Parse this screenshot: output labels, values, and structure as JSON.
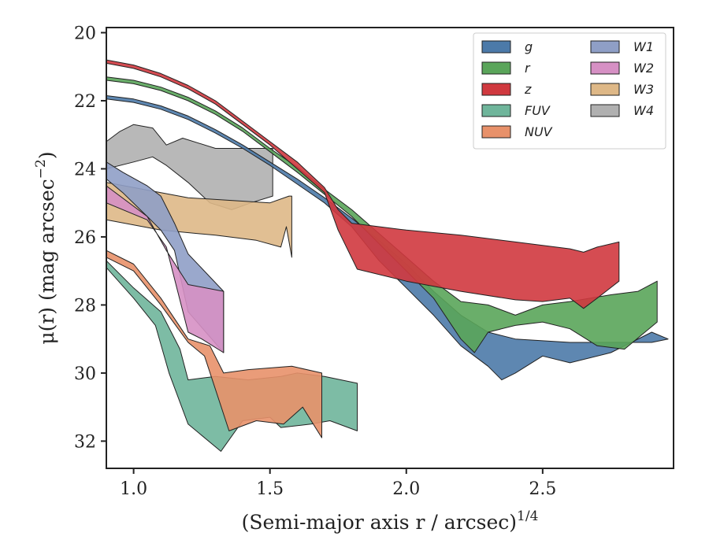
{
  "chart_data": {
    "type": "area",
    "title": "",
    "xlabel": "(Semi-major axis r / arcsec)",
    "xlabel_sup": "1/4",
    "ylabel": "μ(r) (mag arcsec",
    "ylabel_sup": "−2",
    "ylabel_close": ")",
    "xlim": [
      0.9,
      2.98
    ],
    "ylim": [
      32.8,
      19.85
    ],
    "y_inverted": true,
    "xticks": [
      1.0,
      1.5,
      2.0,
      2.5
    ],
    "xtick_labels": [
      "1.0",
      "1.5",
      "2.0",
      "2.5"
    ],
    "yticks": [
      20,
      22,
      24,
      26,
      28,
      30,
      32
    ],
    "ytick_labels": [
      "20",
      "22",
      "24",
      "26",
      "28",
      "30",
      "32"
    ],
    "grid": false,
    "legend_position": "top-right",
    "legend_columns": 2,
    "series": [
      {
        "name": "W4",
        "color": "#b0b0b0",
        "upper": [
          [
            0.9,
            23.2
          ],
          [
            0.95,
            22.9
          ],
          [
            1.0,
            22.7
          ],
          [
            1.07,
            22.8
          ],
          [
            1.12,
            23.3
          ],
          [
            1.18,
            23.1
          ],
          [
            1.3,
            23.4
          ],
          [
            1.51,
            23.4
          ]
        ],
        "lower": [
          [
            0.9,
            24.0
          ],
          [
            1.0,
            23.8
          ],
          [
            1.07,
            23.65
          ],
          [
            1.12,
            23.9
          ],
          [
            1.2,
            24.4
          ],
          [
            1.28,
            25.0
          ],
          [
            1.36,
            25.2
          ],
          [
            1.43,
            25.0
          ],
          [
            1.51,
            24.8
          ]
        ]
      },
      {
        "name": "W3",
        "color": "#deb887",
        "upper": [
          [
            0.9,
            24.4
          ],
          [
            1.2,
            24.85
          ],
          [
            1.5,
            25.0
          ],
          [
            1.57,
            24.8
          ],
          [
            1.58,
            24.8
          ]
        ],
        "lower": [
          [
            0.9,
            25.5
          ],
          [
            1.1,
            25.8
          ],
          [
            1.3,
            25.95
          ],
          [
            1.45,
            26.1
          ],
          [
            1.54,
            26.3
          ],
          [
            1.56,
            25.7
          ],
          [
            1.58,
            26.6
          ]
        ]
      },
      {
        "name": "W1",
        "color": "#8f9fc6",
        "upper": [
          [
            0.9,
            23.8
          ],
          [
            0.96,
            24.1
          ],
          [
            1.05,
            24.5
          ],
          [
            1.1,
            24.8
          ],
          [
            1.15,
            25.6
          ],
          [
            1.2,
            26.5
          ],
          [
            1.33,
            27.6
          ]
        ],
        "lower": [
          [
            0.9,
            24.3
          ],
          [
            0.96,
            24.7
          ],
          [
            1.05,
            25.4
          ],
          [
            1.1,
            25.8
          ],
          [
            1.15,
            26.4
          ],
          [
            1.2,
            28.2
          ],
          [
            1.33,
            29.4
          ]
        ]
      },
      {
        "name": "W2",
        "color": "#d690c4",
        "upper": [
          [
            0.9,
            24.5
          ],
          [
            1.05,
            25.4
          ],
          [
            1.12,
            26.4
          ],
          [
            1.2,
            27.4
          ],
          [
            1.33,
            27.6
          ]
        ],
        "lower": [
          [
            0.9,
            25.0
          ],
          [
            1.05,
            25.5
          ],
          [
            1.12,
            26.3
          ],
          [
            1.2,
            28.8
          ],
          [
            1.25,
            29.0
          ],
          [
            1.33,
            29.4
          ]
        ]
      },
      {
        "name": "FUV",
        "color": "#6fb59b",
        "upper": [
          [
            0.9,
            26.7
          ],
          [
            1.0,
            27.5
          ],
          [
            1.1,
            28.2
          ],
          [
            1.17,
            29.3
          ],
          [
            1.2,
            30.2
          ],
          [
            1.3,
            30.1
          ],
          [
            1.42,
            30.2
          ],
          [
            1.54,
            30.1
          ],
          [
            1.6,
            30.0
          ],
          [
            1.7,
            30.1
          ],
          [
            1.82,
            30.3
          ]
        ],
        "lower": [
          [
            0.9,
            26.9
          ],
          [
            1.0,
            27.8
          ],
          [
            1.08,
            28.6
          ],
          [
            1.13,
            30.0
          ],
          [
            1.2,
            31.5
          ],
          [
            1.32,
            32.3
          ],
          [
            1.4,
            31.4
          ],
          [
            1.5,
            31.3
          ],
          [
            1.54,
            31.6
          ],
          [
            1.65,
            31.5
          ],
          [
            1.72,
            31.4
          ],
          [
            1.82,
            31.7
          ]
        ]
      },
      {
        "name": "NUV",
        "color": "#e8916a",
        "upper": [
          [
            0.9,
            26.4
          ],
          [
            1.0,
            26.8
          ],
          [
            1.1,
            27.8
          ],
          [
            1.2,
            29.0
          ],
          [
            1.28,
            29.2
          ],
          [
            1.33,
            30.0
          ],
          [
            1.42,
            29.9
          ],
          [
            1.58,
            29.8
          ],
          [
            1.69,
            30.0
          ]
        ],
        "lower": [
          [
            0.9,
            26.6
          ],
          [
            1.0,
            27.0
          ],
          [
            1.1,
            28.0
          ],
          [
            1.2,
            29.1
          ],
          [
            1.26,
            29.5
          ],
          [
            1.35,
            31.7
          ],
          [
            1.45,
            31.4
          ],
          [
            1.55,
            31.5
          ],
          [
            1.62,
            31.0
          ],
          [
            1.69,
            31.9
          ]
        ]
      },
      {
        "name": "g",
        "color": "#4c7aa9",
        "upper": [
          [
            0.9,
            21.85
          ],
          [
            1.0,
            21.95
          ],
          [
            1.1,
            22.15
          ],
          [
            1.2,
            22.45
          ],
          [
            1.3,
            22.85
          ],
          [
            1.4,
            23.3
          ],
          [
            1.5,
            23.8
          ],
          [
            1.6,
            24.3
          ],
          [
            1.7,
            24.85
          ],
          [
            1.8,
            25.45
          ],
          [
            1.9,
            26.1
          ],
          [
            2.0,
            26.8
          ],
          [
            2.1,
            27.6
          ],
          [
            2.2,
            28.3
          ],
          [
            2.3,
            28.8
          ],
          [
            2.4,
            29.0
          ],
          [
            2.6,
            29.1
          ],
          [
            2.9,
            29.1
          ]
        ],
        "lower": [
          [
            0.9,
            21.95
          ],
          [
            1.0,
            22.05
          ],
          [
            1.1,
            22.25
          ],
          [
            1.2,
            22.55
          ],
          [
            1.3,
            22.95
          ],
          [
            1.4,
            23.4
          ],
          [
            1.5,
            23.9
          ],
          [
            1.6,
            24.45
          ],
          [
            1.7,
            25.0
          ],
          [
            1.8,
            25.7
          ],
          [
            1.9,
            26.7
          ],
          [
            2.0,
            27.5
          ],
          [
            2.1,
            28.3
          ],
          [
            2.2,
            29.2
          ],
          [
            2.3,
            29.8
          ],
          [
            2.35,
            30.2
          ],
          [
            2.4,
            30.0
          ],
          [
            2.5,
            29.5
          ],
          [
            2.6,
            29.7
          ],
          [
            2.75,
            29.4
          ],
          [
            2.9,
            28.8
          ],
          [
            2.96,
            29.0
          ]
        ]
      },
      {
        "name": "r",
        "color": "#5aa55a",
        "upper": [
          [
            0.9,
            21.3
          ],
          [
            1.0,
            21.4
          ],
          [
            1.1,
            21.6
          ],
          [
            1.2,
            21.9
          ],
          [
            1.3,
            22.3
          ],
          [
            1.4,
            22.8
          ],
          [
            1.5,
            23.4
          ],
          [
            1.6,
            23.95
          ],
          [
            1.7,
            24.6
          ],
          [
            1.8,
            25.2
          ],
          [
            1.9,
            25.9
          ],
          [
            2.0,
            26.6
          ],
          [
            2.1,
            27.3
          ],
          [
            2.2,
            27.9
          ],
          [
            2.3,
            28.0
          ],
          [
            2.4,
            28.3
          ],
          [
            2.5,
            28.0
          ],
          [
            2.6,
            27.9
          ],
          [
            2.75,
            27.7
          ],
          [
            2.85,
            27.6
          ],
          [
            2.92,
            27.3
          ]
        ],
        "lower": [
          [
            0.9,
            21.4
          ],
          [
            1.0,
            21.5
          ],
          [
            1.1,
            21.7
          ],
          [
            1.2,
            22.0
          ],
          [
            1.3,
            22.4
          ],
          [
            1.4,
            22.9
          ],
          [
            1.5,
            23.5
          ],
          [
            1.6,
            24.1
          ],
          [
            1.7,
            24.75
          ],
          [
            1.8,
            25.4
          ],
          [
            1.9,
            26.2
          ],
          [
            2.0,
            27.0
          ],
          [
            2.1,
            27.8
          ],
          [
            2.2,
            29.0
          ],
          [
            2.25,
            29.4
          ],
          [
            2.3,
            28.8
          ],
          [
            2.4,
            28.6
          ],
          [
            2.5,
            28.5
          ],
          [
            2.6,
            28.7
          ],
          [
            2.7,
            29.2
          ],
          [
            2.8,
            29.3
          ],
          [
            2.92,
            28.5
          ]
        ]
      },
      {
        "name": "z",
        "color": "#d0393f",
        "upper": [
          [
            0.9,
            20.8
          ],
          [
            1.0,
            20.95
          ],
          [
            1.1,
            21.2
          ],
          [
            1.2,
            21.55
          ],
          [
            1.3,
            22.0
          ],
          [
            1.4,
            22.6
          ],
          [
            1.5,
            23.2
          ],
          [
            1.6,
            23.8
          ],
          [
            1.7,
            24.55
          ],
          [
            1.75,
            25.2
          ],
          [
            1.8,
            25.6
          ],
          [
            2.0,
            25.8
          ],
          [
            2.2,
            25.95
          ],
          [
            2.4,
            26.15
          ],
          [
            2.6,
            26.35
          ],
          [
            2.65,
            26.45
          ],
          [
            2.7,
            26.3
          ],
          [
            2.78,
            26.15
          ]
        ],
        "lower": [
          [
            0.9,
            20.9
          ],
          [
            1.0,
            21.05
          ],
          [
            1.1,
            21.3
          ],
          [
            1.2,
            21.65
          ],
          [
            1.3,
            22.1
          ],
          [
            1.4,
            22.7
          ],
          [
            1.5,
            23.3
          ],
          [
            1.6,
            24.0
          ],
          [
            1.7,
            24.7
          ],
          [
            1.75,
            25.8
          ],
          [
            1.82,
            26.95
          ],
          [
            2.0,
            27.3
          ],
          [
            2.2,
            27.6
          ],
          [
            2.4,
            27.85
          ],
          [
            2.5,
            27.9
          ],
          [
            2.6,
            27.8
          ],
          [
            2.65,
            28.1
          ],
          [
            2.7,
            27.8
          ],
          [
            2.78,
            27.3
          ]
        ]
      }
    ]
  },
  "legend": [
    {
      "name": "g",
      "color": "#4c7aa9"
    },
    {
      "name": "r",
      "color": "#5aa55a"
    },
    {
      "name": "z",
      "color": "#d0393f"
    },
    {
      "name": "FUV",
      "color": "#6fb59b"
    },
    {
      "name": "NUV",
      "color": "#e8916a"
    },
    {
      "name": "W1",
      "color": "#8f9fc6"
    },
    {
      "name": "W2",
      "color": "#d690c4"
    },
    {
      "name": "W3",
      "color": "#deb887"
    },
    {
      "name": "W4",
      "color": "#b0b0b0"
    }
  ]
}
